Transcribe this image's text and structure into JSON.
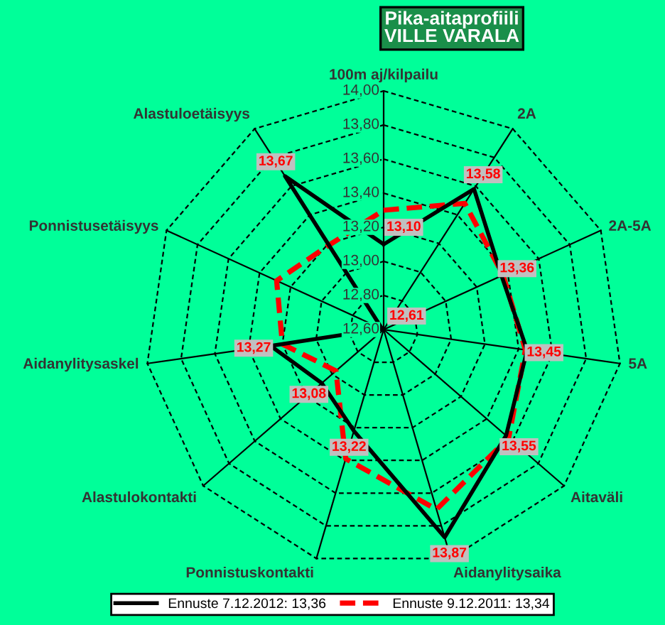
{
  "chart_data": {
    "type": "radar",
    "title": "Pika-aitaprofiili\nVILLE VARALA",
    "categories": [
      "100m aj/kilpailu",
      "2A",
      "2A-5A",
      "5A",
      "Aitaväli",
      "Aidanylitysaika",
      "Ponnistuskontakti",
      "Alastulokontakti",
      "Aidanylitysaskel",
      "Ponnistusetäisyys",
      "Alastuloetäisyys"
    ],
    "series": [
      {
        "name": "Ennuste 7.12.2012: 13,36",
        "color": "#000000",
        "line_style": "solid",
        "values": [
          13.1,
          13.58,
          13.36,
          13.45,
          13.55,
          13.87,
          13.22,
          13.08,
          13.27,
          12.61,
          13.67
        ],
        "value_labels": [
          "13,10",
          "13,58",
          "13,36",
          "13,45",
          "13,55",
          "13,87",
          "13,22",
          "13,08",
          "13,27",
          "12,61",
          "13,67"
        ]
      },
      {
        "name": "Ennuste 9.12.2011: 13,34",
        "color": "#ff0000",
        "line_style": "dashed",
        "values": [
          13.3,
          13.48,
          13.37,
          13.44,
          13.57,
          13.7,
          13.39,
          12.97,
          13.2,
          13.29,
          13.19
        ]
      }
    ],
    "ylim": [
      12.6,
      14.0
    ],
    "yticks": [
      {
        "value": 12.6,
        "label": "12,60"
      },
      {
        "value": 12.8,
        "label": "12,80"
      },
      {
        "value": 13.0,
        "label": "13,00"
      },
      {
        "value": 13.2,
        "label": "13,20"
      },
      {
        "value": 13.4,
        "label": "13,40"
      },
      {
        "value": 13.6,
        "label": "13,60"
      },
      {
        "value": 13.8,
        "label": "13,80"
      },
      {
        "value": 14.0,
        "label": "14,00"
      }
    ],
    "grid": true,
    "legend": "bottom",
    "marker": "none"
  }
}
